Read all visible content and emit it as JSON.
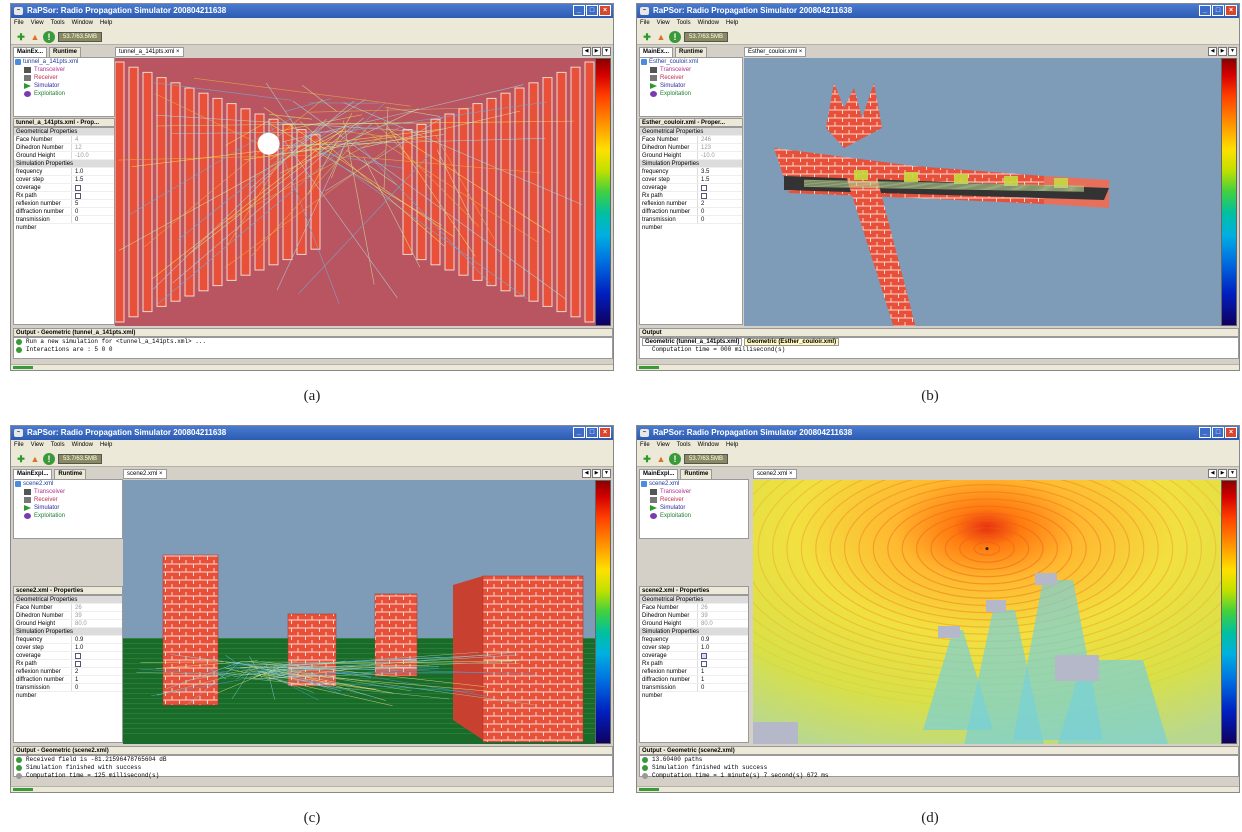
{
  "app": {
    "title": "RaPSor: Radio Propagation Simulator 200804211638",
    "logo_text": "~",
    "menu": [
      "File",
      "View",
      "Tools",
      "Window",
      "Help"
    ],
    "toolbar_icons": [
      "add-icon",
      "chart-icon",
      "run-icon"
    ],
    "memory": "53.7/63.5MB",
    "colors": {
      "titlebar": "#2d5bb3",
      "brick": "#e8503a",
      "sky": "#7e9bb8",
      "close": "#d8462c"
    }
  },
  "tree_items": [
    {
      "label": "Transceiver",
      "icon": "transceiver-icon"
    },
    {
      "label": "Receiver",
      "icon": "receiver-icon"
    },
    {
      "label": "Simulator",
      "icon": "simulator-icon"
    },
    {
      "label": "Exploitation",
      "icon": "exploitation-icon"
    }
  ],
  "props": {
    "geo_section": "Geometrical Properties",
    "face": "Face Number",
    "dihedron": "Dihedron Number",
    "ground": "Ground Height",
    "sim_section": "Simulation Properties",
    "frequency": "frequency",
    "cover": "cover step",
    "coverage": "coverage",
    "rxpath": "Rx path",
    "reflexion": "reflexion number",
    "diffraction": "diffraction number",
    "transmission": "transmission number"
  },
  "panels": {
    "a": {
      "caption": "(a)",
      "tab_main": "MainEx...",
      "tab_runtime": "Runtime",
      "root": "tunnel_a_141pts.xml",
      "doc_tab": "tunnel_a_141pts.xml",
      "props_title": "tunnel_a_141pts.xml - Prop...",
      "values": {
        "face": "4",
        "dihedron": "12",
        "ground": "-10.0",
        "frequency": "1.0",
        "cover": "1.5",
        "reflexion": "5",
        "diffraction": "0",
        "transmission": "0"
      },
      "output_title": "Output - Geometric (tunnel_a_141pts.xml)",
      "output_lines": [
        "Run a new simulation for <tunnel_a_141pts.xml> ...",
        "Interactions are : 5 0 0"
      ]
    },
    "b": {
      "caption": "(b)",
      "tab_main": "MainEx...",
      "tab_runtime": "Runtime",
      "root": "Esther_couloir.xml",
      "doc_tab": "Esther_couloir.xml",
      "props_title": "Esther_couloir.xml - Proper...",
      "values": {
        "face": "246",
        "dihedron": "123",
        "ground": "-10.0",
        "frequency": "3.5",
        "cover": "1.5",
        "reflexion": "2",
        "diffraction": "0",
        "transmission": "0"
      },
      "output_title": "Output",
      "output_tab1": "Geometric (tunnel_a_141pts.xml)",
      "output_tab2": "Geometric (Esther_couloir.xml)",
      "output_lines": [
        "Computation time = 000 millisecond(s)"
      ]
    },
    "c": {
      "caption": "(c)",
      "tab_main": "MainExpl...",
      "tab_runtime": "Runtime",
      "root": "scene2.xml",
      "doc_tab": "scene2.xml",
      "props_title": "scene2.xml - Properties",
      "values": {
        "face": "26",
        "dihedron": "39",
        "ground": "80.0",
        "frequency": "0.9",
        "cover": "1.0",
        "reflexion": "2",
        "diffraction": "1",
        "transmission": "0"
      },
      "output_title": "Output - Geometric (scene2.xml)",
      "output_lines": [
        "Received field is -81.21596478765604 dB",
        "Simulation finished with success",
        "Computation time = 125 millisecond(s)"
      ]
    },
    "d": {
      "caption": "(d)",
      "tab_main": "MainExpl...",
      "tab_runtime": "Runtime",
      "root": "scene2.xml",
      "doc_tab": "scene2.xml",
      "props_title": "scene2.xml - Properties",
      "values": {
        "face": "26",
        "dihedron": "39",
        "ground": "80.0",
        "frequency": "0.9",
        "cover": "1.0",
        "reflexion": "1",
        "diffraction": "1",
        "transmission": "0"
      },
      "output_title": "Output - Geometric (scene2.xml)",
      "output_lines": [
        "13.60400 paths",
        "Simulation finished with success",
        "Computation time = 1 minute(s) 7 second(s) 672 ms"
      ]
    }
  }
}
